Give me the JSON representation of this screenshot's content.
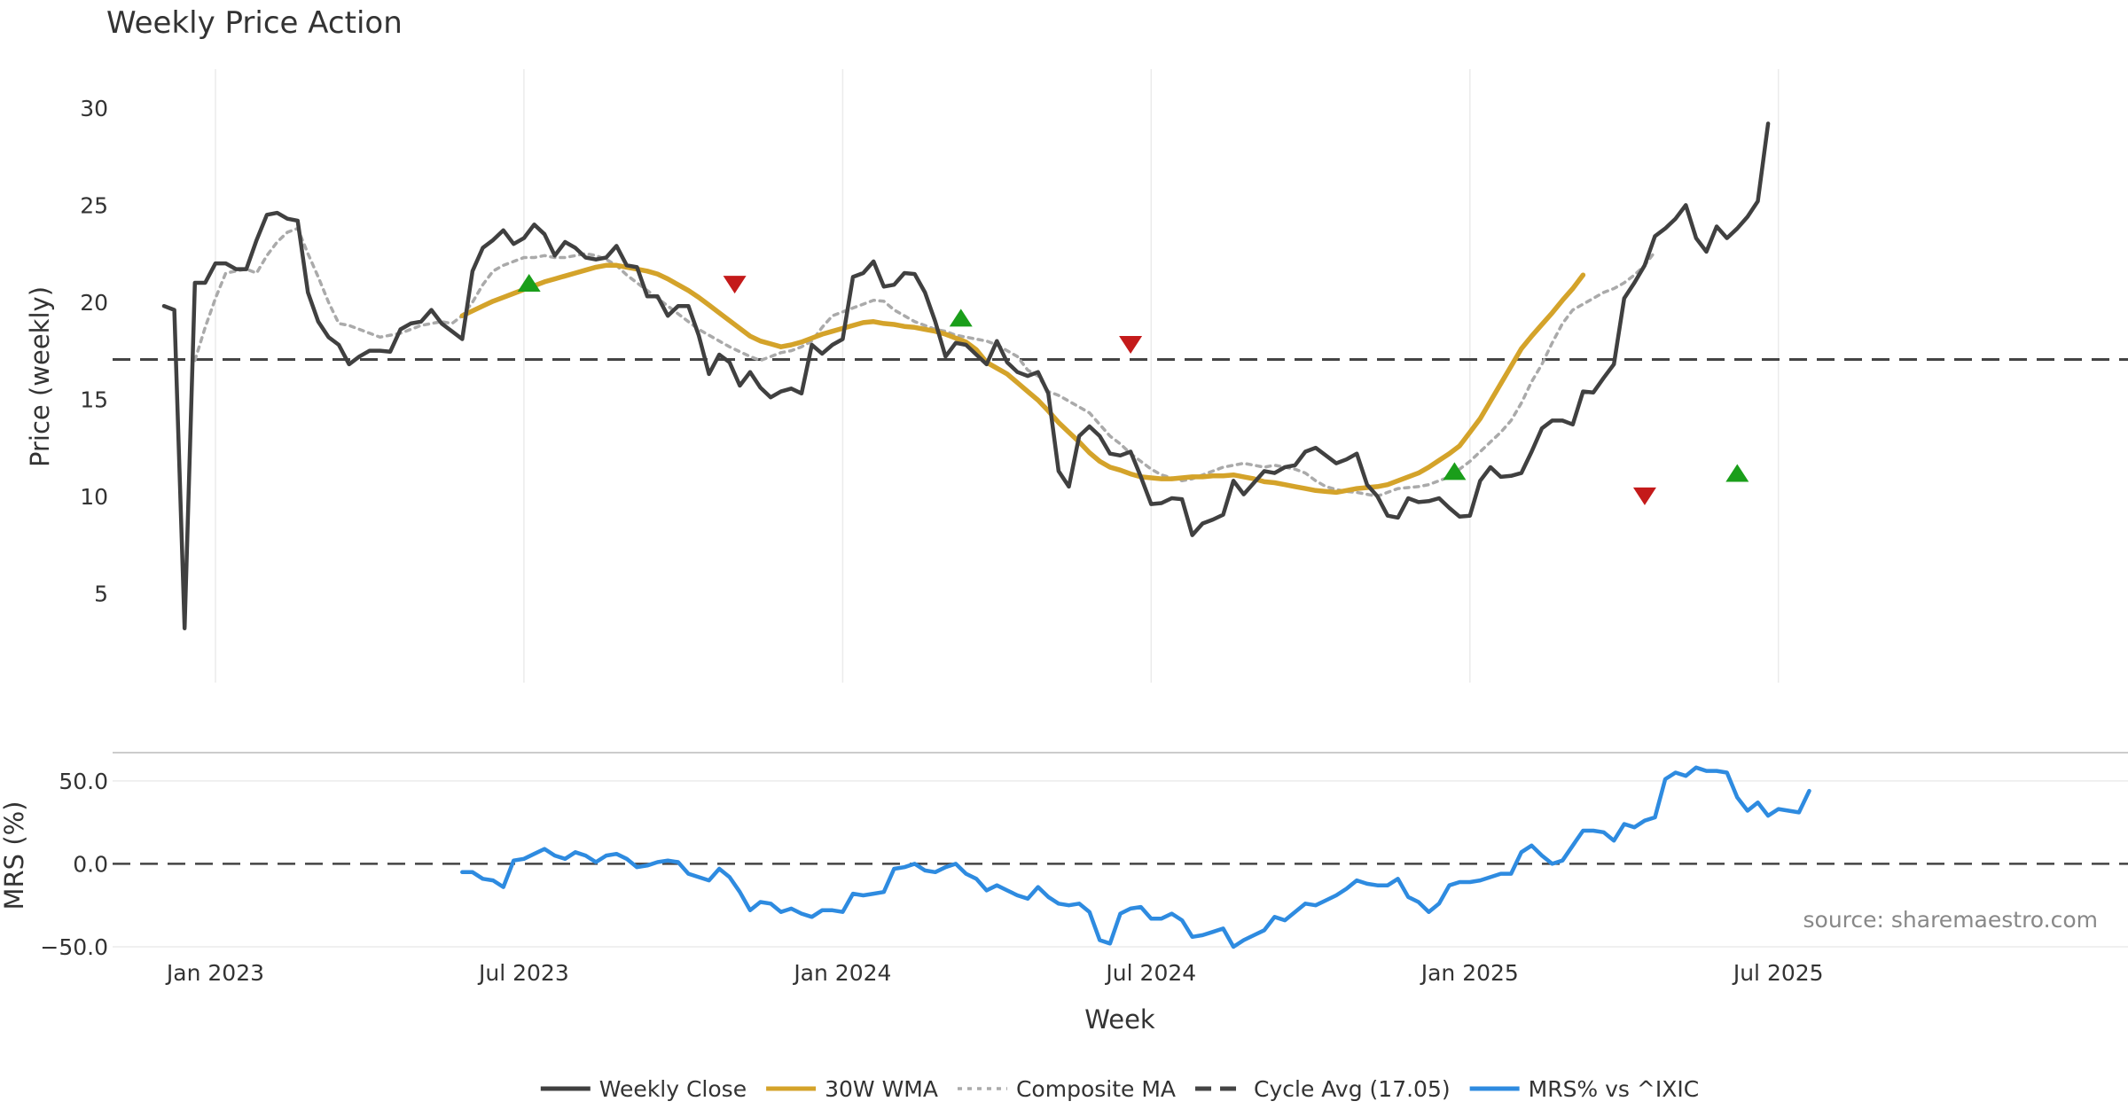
{
  "colors": {
    "close": "#404040",
    "wma": "#d4a32a",
    "composite": "#aaaaaa",
    "cycle": "#444444",
    "mrs": "#2e8be0",
    "buy": "#1a9e1a",
    "sell": "#c41a1a",
    "grid": "#ebebeb",
    "text": "#333333",
    "source": "#888888"
  },
  "source_note": "source: sharemaestro.com",
  "legend": [
    {
      "label": "Weekly Close",
      "icon": "solid-line",
      "color": "#404040"
    },
    {
      "label": "30W WMA",
      "icon": "solid-line",
      "color": "#d4a32a"
    },
    {
      "label": "Composite MA",
      "icon": "dotted-line",
      "color": "#aaaaaa"
    },
    {
      "label": "Cycle Avg (17.05)",
      "icon": "dashed-line",
      "color": "#444444"
    },
    {
      "label": "MRS% vs ^IXIC",
      "icon": "solid-line",
      "color": "#2e8be0"
    }
  ],
  "chart_data": [
    {
      "type": "line",
      "title": "Weekly Price Action",
      "xlabel": "Week",
      "ylabel": "Price (weekly)",
      "xlim": [
        -5,
        191
      ],
      "ylim": [
        2,
        31
      ],
      "yticks": [
        5,
        10,
        15,
        20,
        25,
        30
      ],
      "ytick_labels": [
        "5",
        "10",
        "15",
        "20",
        "25",
        "30"
      ],
      "grid": true,
      "x_tick_positions": [
        5,
        35,
        66,
        96,
        127,
        157
      ],
      "x_tick_labels": [
        "Jan 2023",
        "Jul 2023",
        "Jan 2024",
        "Jul 2024",
        "Jan 2025",
        "Jul 2025"
      ],
      "reference_line": {
        "label": "Cycle Avg (17.05)",
        "value": 17.05
      },
      "series": [
        {
          "name": "Weekly Close",
          "x_start": 0,
          "values": [
            19.8,
            19.6,
            3.2,
            21.0,
            21.0,
            22.0,
            22.0,
            21.7,
            21.7,
            23.2,
            24.5,
            24.6,
            24.3,
            24.2,
            20.5,
            19.0,
            18.2,
            17.8,
            16.8,
            17.2,
            17.5,
            17.5,
            17.45,
            18.6,
            18.9,
            19.0,
            19.6,
            18.9,
            18.5,
            18.1,
            21.6,
            22.8,
            23.2,
            23.7,
            23.0,
            23.3,
            24.0,
            23.5,
            22.4,
            23.1,
            22.8,
            22.3,
            22.2,
            22.3,
            22.9,
            21.9,
            21.8,
            20.3,
            20.3,
            19.3,
            19.8,
            19.8,
            18.3,
            16.3,
            17.3,
            16.9,
            15.7,
            16.4,
            15.6,
            15.1,
            15.4,
            15.55,
            15.3,
            17.8,
            17.35,
            17.8,
            18.1,
            21.3,
            21.5,
            22.1,
            20.8,
            20.9,
            21.5,
            21.45,
            20.5,
            19.0,
            17.2,
            17.9,
            17.8,
            17.3,
            16.8,
            18.0,
            16.9,
            16.4,
            16.2,
            16.4,
            15.3,
            11.3,
            10.5,
            13.1,
            13.6,
            13.1,
            12.2,
            12.1,
            12.3,
            11.0,
            9.6,
            9.65,
            9.9,
            9.85,
            8.0,
            8.6,
            8.8,
            9.05,
            10.8,
            10.1,
            10.7,
            11.3,
            11.2,
            11.5,
            11.6,
            12.3,
            12.5,
            12.1,
            11.7,
            11.9,
            12.2,
            10.6,
            10.0,
            9.0,
            8.9,
            9.9,
            9.7,
            9.75,
            9.9,
            9.4,
            8.95,
            9.0,
            10.8,
            11.5,
            11.0,
            11.05,
            11.2,
            12.3,
            13.5,
            13.9,
            13.9,
            13.7,
            15.4,
            15.35,
            16.1,
            16.8,
            20.2,
            21.0,
            21.9,
            23.4,
            23.8,
            24.3,
            25.0,
            23.3,
            22.6,
            23.9,
            23.3,
            23.8,
            24.4,
            25.2,
            29.2
          ]
        },
        {
          "name": "30W WMA",
          "x_start": 29,
          "values": [
            19.3,
            19.55,
            19.8,
            20.05,
            20.25,
            20.45,
            20.65,
            20.85,
            21.05,
            21.2,
            21.35,
            21.5,
            21.65,
            21.8,
            21.9,
            21.9,
            21.8,
            21.7,
            21.6,
            21.45,
            21.2,
            20.9,
            20.6,
            20.25,
            19.85,
            19.45,
            19.05,
            18.65,
            18.25,
            18.0,
            17.85,
            17.7,
            17.8,
            17.95,
            18.15,
            18.35,
            18.5,
            18.65,
            18.8,
            18.95,
            19.0,
            18.9,
            18.85,
            18.75,
            18.7,
            18.6,
            18.5,
            18.35,
            18.15,
            17.95,
            17.55,
            16.9,
            16.6,
            16.3,
            15.85,
            15.4,
            14.95,
            14.4,
            13.8,
            13.3,
            12.8,
            12.25,
            11.8,
            11.5,
            11.35,
            11.15,
            11.0,
            10.95,
            10.9,
            10.9,
            10.95,
            11.0,
            11.0,
            11.05,
            11.05,
            11.1,
            11.0,
            10.9,
            10.75,
            10.7,
            10.6,
            10.5,
            10.4,
            10.3,
            10.25,
            10.2,
            10.3,
            10.4,
            10.45,
            10.5,
            10.6,
            10.8,
            11.0,
            11.2,
            11.5,
            11.85,
            12.2,
            12.6,
            13.3,
            14.0,
            14.9,
            15.8,
            16.7,
            17.6,
            18.25,
            18.85,
            19.45,
            20.1,
            20.7,
            21.4
          ]
        },
        {
          "name": "Composite MA",
          "x_start": 3,
          "values": [
            17.0,
            18.7,
            20.2,
            21.5,
            21.6,
            21.7,
            21.5,
            22.4,
            23.1,
            23.6,
            23.8,
            22.5,
            21.3,
            20.0,
            18.9,
            18.8,
            18.6,
            18.4,
            18.2,
            18.3,
            18.4,
            18.6,
            18.8,
            18.9,
            19.0,
            18.9,
            19.3,
            20.0,
            20.9,
            21.6,
            21.9,
            22.1,
            22.3,
            22.3,
            22.4,
            22.3,
            22.3,
            22.4,
            22.5,
            22.4,
            22.2,
            21.9,
            21.4,
            21.0,
            20.6,
            20.2,
            19.8,
            19.4,
            19.0,
            18.6,
            18.3,
            18.0,
            17.7,
            17.45,
            17.2,
            17.0,
            17.2,
            17.4,
            17.5,
            17.7,
            18.0,
            18.7,
            19.3,
            19.5,
            19.7,
            19.9,
            20.1,
            20.05,
            19.6,
            19.3,
            19.0,
            18.8,
            18.6,
            18.5,
            18.3,
            18.2,
            18.1,
            18.0,
            17.8,
            17.5,
            17.2,
            16.5,
            16.2,
            15.4,
            15.2,
            14.9,
            14.6,
            14.3,
            13.7,
            13.1,
            12.7,
            12.2,
            11.8,
            11.4,
            11.1,
            10.95,
            10.8,
            10.9,
            11.1,
            11.3,
            11.5,
            11.6,
            11.7,
            11.6,
            11.5,
            11.6,
            11.5,
            11.4,
            11.2,
            10.8,
            10.5,
            10.35,
            10.25,
            10.2,
            10.1,
            10.0,
            10.2,
            10.4,
            10.45,
            10.5,
            10.6,
            10.8,
            11.0,
            11.4,
            11.8,
            12.3,
            12.8,
            13.3,
            13.9,
            14.8,
            15.9,
            16.8,
            17.9,
            18.9,
            19.6,
            19.9,
            20.2,
            20.5,
            20.7,
            21.0,
            21.4,
            21.9,
            22.6
          ]
        }
      ],
      "markers": [
        {
          "type": "buy",
          "x": 35.5,
          "y": 21.0
        },
        {
          "type": "sell",
          "x": 55.5,
          "y": 20.9
        },
        {
          "type": "buy",
          "x": 77.5,
          "y": 19.2
        },
        {
          "type": "sell",
          "x": 94,
          "y": 17.8
        },
        {
          "type": "buy",
          "x": 125.5,
          "y": 11.3
        },
        {
          "type": "sell",
          "x": 144,
          "y": 10.0
        },
        {
          "type": "buy",
          "x": 153,
          "y": 11.2
        }
      ]
    },
    {
      "type": "line",
      "title": "",
      "xlabel": "Week",
      "ylabel": "MRS (%)",
      "xlim": [
        -5,
        191
      ],
      "ylim": [
        -50,
        67
      ],
      "yticks": [
        50,
        0,
        -50
      ],
      "ytick_labels": [
        "50.0",
        "0.0",
        "−50.0"
      ],
      "reference_line": {
        "value": 0
      },
      "series": [
        {
          "name": "MRS% vs ^IXIC",
          "x_start": 29,
          "values": [
            -5,
            -5,
            -9,
            -10,
            -14,
            2,
            3,
            6,
            9,
            5,
            3,
            7,
            5,
            1,
            5,
            6,
            3,
            -2,
            -1,
            1,
            2,
            1,
            -6,
            -8,
            -10,
            -3,
            -8,
            -17,
            -28,
            -23,
            -24,
            -29,
            -27,
            -30,
            -32,
            -28,
            -28,
            -29,
            -18,
            -19,
            -18,
            -17,
            -3,
            -2,
            0,
            -4,
            -5,
            -2,
            0,
            -6,
            -9,
            -16,
            -13,
            -16,
            -19,
            -21,
            -14,
            -20,
            -24,
            -25,
            -24,
            -29,
            -46,
            -48,
            -30,
            -27,
            -26,
            -33,
            -33,
            -30,
            -34,
            -44,
            -43,
            -41,
            -39,
            -50,
            -46,
            -43,
            -40,
            -32,
            -34,
            -29,
            -24,
            -25,
            -22,
            -19,
            -15,
            -10,
            -12,
            -13,
            -13,
            -9,
            -20,
            -23,
            -29,
            -24,
            -13,
            -11,
            -11,
            -10,
            -8,
            -6,
            -6,
            7,
            11,
            5,
            0,
            2,
            11,
            20,
            20,
            19,
            14,
            24,
            22,
            26,
            28,
            51,
            55,
            53,
            58,
            56,
            56,
            55,
            40,
            32,
            37,
            29,
            33,
            32,
            31,
            44
          ]
        }
      ]
    }
  ]
}
